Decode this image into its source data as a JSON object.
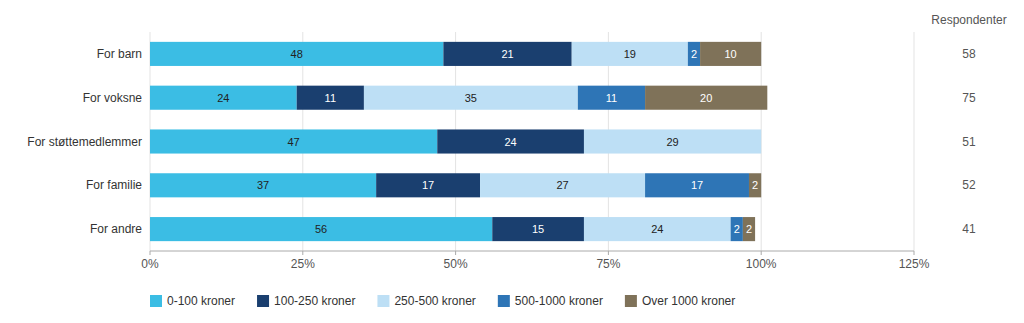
{
  "chart_data": {
    "type": "bar",
    "orientation": "horizontal",
    "stacked": true,
    "data_labels": true,
    "grid": true,
    "legend": "bottom",
    "categories": [
      "For barn",
      "For voksne",
      "For støttemedlemmer",
      "For familie",
      "For andre"
    ],
    "series": [
      {
        "name": "0-100 kroner",
        "color": "#3bbde4",
        "values": [
          48,
          24,
          47,
          37,
          56
        ],
        "value_labels": [
          "48",
          "24",
          "47",
          "37",
          "56"
        ]
      },
      {
        "name": "100-250 kroner",
        "color": "#1a3f6f",
        "values": [
          21,
          11,
          24,
          17,
          15
        ],
        "value_labels": [
          "21",
          "11",
          "24",
          "17",
          "15"
        ]
      },
      {
        "name": "250-500 kroner",
        "color": "#bddff5",
        "values": [
          19,
          35,
          29,
          27,
          24
        ],
        "value_labels": [
          "19",
          "35",
          "29",
          "27",
          "24"
        ]
      },
      {
        "name": "500-1000 kroner",
        "color": "#2e75b6",
        "values": [
          2,
          11,
          0,
          17,
          2
        ],
        "value_labels": [
          "2",
          "11",
          null,
          "17",
          "2"
        ]
      },
      {
        "name": "Over 1000 kroner",
        "color": "#7f7259",
        "values": [
          10,
          20,
          0,
          2,
          2
        ],
        "value_labels": [
          "10",
          "20",
          null,
          "2",
          "2"
        ]
      }
    ],
    "xlim": [
      0,
      125
    ],
    "xticks": [
      {
        "value": 0,
        "label": "0%"
      },
      {
        "value": 25,
        "label": "25%"
      },
      {
        "value": 50,
        "label": "50%"
      },
      {
        "value": 75,
        "label": "75%"
      },
      {
        "value": 100,
        "label": "100%"
      },
      {
        "value": 125,
        "label": "125%"
      }
    ],
    "respondents_header": "Respondenter",
    "respondents": [
      58,
      75,
      51,
      52,
      41
    ]
  }
}
